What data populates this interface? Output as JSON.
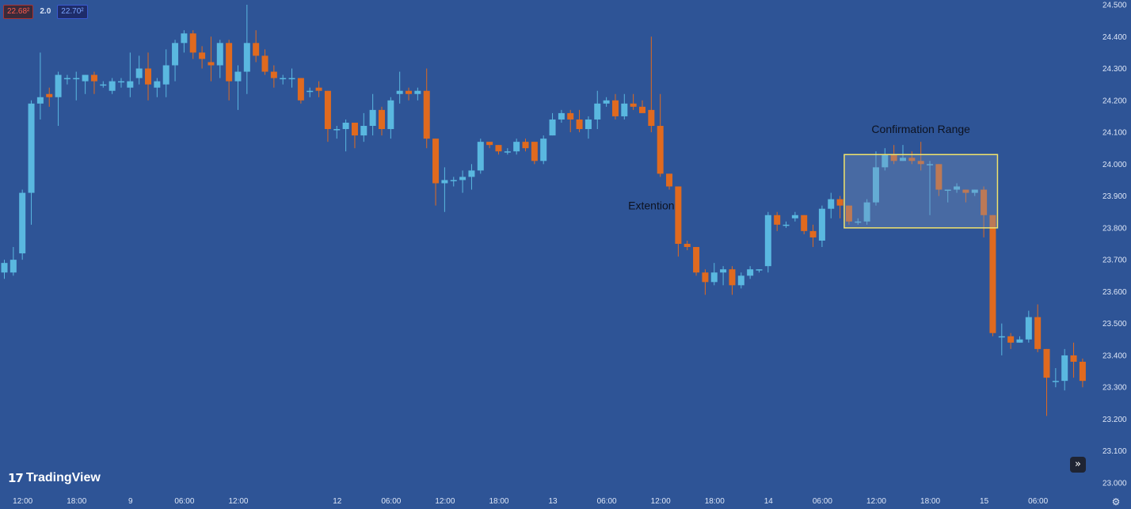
{
  "header": {
    "ask_price": "22.68²",
    "spread": "2.0",
    "bid_price": "22.70²"
  },
  "branding": {
    "logo_mark": "17",
    "logo_text": "TradingView"
  },
  "controls": {
    "scroll_icon": "double-chevron-right-icon",
    "settings_icon": "gear-icon"
  },
  "colors": {
    "background": "#2e5496",
    "bullish": "#5ab8e0",
    "bearish": "#e06a1f",
    "annotation_box": "#f2e36b",
    "annotation_text": "#0d1220",
    "axis_text": "#dde6f7"
  },
  "chart_data": {
    "type": "candlestick",
    "title": "",
    "xlabel": "",
    "ylabel": "",
    "ylim": [
      23.0,
      24.5
    ],
    "y_ticks": [
      "24.500",
      "24.400",
      "24.300",
      "24.200",
      "24.100",
      "24.000",
      "23.900",
      "23.800",
      "23.700",
      "23.600",
      "23.500",
      "23.400",
      "23.300",
      "23.200",
      "23.100",
      "23.000"
    ],
    "x_ticks": [
      {
        "label": "12:00",
        "index": 2
      },
      {
        "label": "18:00",
        "index": 8
      },
      {
        "label": "9",
        "index": 14
      },
      {
        "label": "06:00",
        "index": 20
      },
      {
        "label": "12:00",
        "index": 26
      },
      {
        "label": "12",
        "index": 37
      },
      {
        "label": "06:00",
        "index": 43
      },
      {
        "label": "12:00",
        "index": 49
      },
      {
        "label": "18:00",
        "index": 55
      },
      {
        "label": "13",
        "index": 61
      },
      {
        "label": "06:00",
        "index": 67
      },
      {
        "label": "12:00",
        "index": 73
      },
      {
        "label": "18:00",
        "index": 79
      },
      {
        "label": "14",
        "index": 85
      },
      {
        "label": "06:00",
        "index": 91
      },
      {
        "label": "12:00",
        "index": 97
      },
      {
        "label": "18:00",
        "index": 103
      },
      {
        "label": "15",
        "index": 109
      },
      {
        "label": "06:00",
        "index": 115
      }
    ],
    "candles": [
      [
        23.66,
        23.69,
        23.64,
        23.7
      ],
      [
        23.66,
        23.7,
        23.65,
        23.74
      ],
      [
        23.72,
        23.91,
        23.7,
        23.92
      ],
      [
        23.91,
        24.19,
        23.81,
        24.2
      ],
      [
        24.19,
        24.21,
        24.14,
        24.35
      ],
      [
        24.22,
        24.21,
        24.18,
        24.24
      ],
      [
        24.21,
        24.28,
        24.12,
        24.29
      ],
      [
        24.27,
        24.27,
        24.25,
        24.28
      ],
      [
        24.27,
        24.27,
        24.2,
        24.29
      ],
      [
        24.26,
        24.28,
        24.22,
        24.28
      ],
      [
        24.28,
        24.26,
        24.22,
        24.29
      ],
      [
        24.25,
        24.25,
        24.24,
        24.26
      ],
      [
        24.23,
        24.26,
        24.22,
        24.27
      ],
      [
        24.26,
        24.26,
        24.24,
        24.27
      ],
      [
        24.24,
        24.26,
        24.21,
        24.35
      ],
      [
        24.27,
        24.3,
        24.25,
        24.34
      ],
      [
        24.3,
        24.25,
        24.2,
        24.35
      ],
      [
        24.24,
        24.26,
        24.21,
        24.27
      ],
      [
        24.25,
        24.31,
        24.21,
        24.36
      ],
      [
        24.31,
        24.38,
        24.26,
        24.39
      ],
      [
        24.38,
        24.41,
        24.35,
        24.42
      ],
      [
        24.41,
        24.35,
        24.33,
        24.42
      ],
      [
        24.35,
        24.33,
        24.3,
        24.37
      ],
      [
        24.32,
        24.31,
        24.26,
        24.4
      ],
      [
        24.31,
        24.38,
        24.27,
        24.39
      ],
      [
        24.38,
        24.26,
        24.2,
        24.39
      ],
      [
        24.26,
        24.29,
        24.17,
        24.31
      ],
      [
        24.29,
        24.38,
        24.22,
        24.5
      ],
      [
        24.38,
        24.34,
        24.32,
        24.42
      ],
      [
        24.34,
        24.29,
        24.28,
        24.36
      ],
      [
        24.29,
        24.27,
        24.24,
        24.31
      ],
      [
        24.27,
        24.27,
        24.25,
        24.28
      ],
      [
        24.27,
        24.27,
        24.24,
        24.3
      ],
      [
        24.27,
        24.2,
        24.19,
        24.27
      ],
      [
        24.23,
        24.23,
        24.21,
        24.24
      ],
      [
        24.24,
        24.23,
        24.21,
        24.26
      ],
      [
        24.23,
        24.11,
        24.07,
        24.23
      ],
      [
        24.11,
        24.11,
        24.08,
        24.12
      ],
      [
        24.11,
        24.13,
        24.04,
        24.14
      ],
      [
        24.13,
        24.09,
        24.05,
        24.13
      ],
      [
        24.09,
        24.12,
        24.07,
        24.16
      ],
      [
        24.12,
        24.17,
        24.09,
        24.22
      ],
      [
        24.17,
        24.11,
        24.09,
        24.18
      ],
      [
        24.11,
        24.2,
        24.08,
        24.21
      ],
      [
        24.22,
        24.23,
        24.19,
        24.29
      ],
      [
        24.23,
        24.22,
        24.2,
        24.24
      ],
      [
        24.22,
        24.23,
        24.2,
        24.24
      ],
      [
        24.23,
        24.08,
        24.05,
        24.3
      ],
      [
        24.08,
        23.94,
        23.87,
        24.08
      ],
      [
        23.94,
        23.95,
        23.85,
        23.99
      ],
      [
        23.95,
        23.95,
        23.93,
        23.96
      ],
      [
        23.95,
        23.96,
        23.91,
        23.98
      ],
      [
        23.96,
        23.98,
        23.92,
        24.0
      ],
      [
        23.98,
        24.07,
        23.97,
        24.08
      ],
      [
        24.07,
        24.06,
        24.05,
        24.07
      ],
      [
        24.06,
        24.04,
        24.03,
        24.06
      ],
      [
        24.04,
        24.04,
        24.03,
        24.05
      ],
      [
        24.04,
        24.07,
        24.03,
        24.08
      ],
      [
        24.07,
        24.05,
        24.04,
        24.08
      ],
      [
        24.07,
        24.01,
        24.0,
        24.07
      ],
      [
        24.01,
        24.08,
        24.0,
        24.09
      ],
      [
        24.09,
        24.14,
        24.09,
        24.16
      ],
      [
        24.14,
        24.16,
        24.13,
        24.17
      ],
      [
        24.16,
        24.14,
        24.1,
        24.17
      ],
      [
        24.14,
        24.11,
        24.1,
        24.17
      ],
      [
        24.11,
        24.14,
        24.08,
        24.15
      ],
      [
        24.14,
        24.19,
        24.11,
        24.23
      ],
      [
        24.19,
        24.2,
        24.18,
        24.21
      ],
      [
        24.2,
        24.15,
        24.14,
        24.22
      ],
      [
        24.15,
        24.19,
        24.14,
        24.22
      ],
      [
        24.19,
        24.18,
        24.17,
        24.22
      ],
      [
        24.18,
        24.16,
        24.16,
        24.2
      ],
      [
        24.17,
        24.12,
        24.1,
        24.4
      ],
      [
        24.12,
        23.97,
        23.96,
        24.22
      ],
      [
        23.97,
        23.93,
        23.92,
        23.97
      ],
      [
        23.93,
        23.75,
        23.71,
        23.93
      ],
      [
        23.75,
        23.74,
        23.73,
        23.76
      ],
      [
        23.74,
        23.66,
        23.65,
        23.74
      ],
      [
        23.66,
        23.63,
        23.59,
        23.67
      ],
      [
        23.63,
        23.66,
        23.62,
        23.69
      ],
      [
        23.66,
        23.67,
        23.62,
        23.68
      ],
      [
        23.67,
        23.62,
        23.59,
        23.68
      ],
      [
        23.62,
        23.65,
        23.61,
        23.66
      ],
      [
        23.65,
        23.67,
        23.64,
        23.68
      ],
      [
        23.67,
        23.67,
        23.66,
        23.67
      ],
      [
        23.68,
        23.84,
        23.66,
        23.85
      ],
      [
        23.84,
        23.81,
        23.79,
        23.85
      ],
      [
        23.81,
        23.81,
        23.8,
        23.82
      ],
      [
        23.83,
        23.84,
        23.82,
        23.85
      ],
      [
        23.84,
        23.79,
        23.78,
        23.84
      ],
      [
        23.79,
        23.77,
        23.74,
        23.81
      ],
      [
        23.76,
        23.86,
        23.74,
        23.87
      ],
      [
        23.86,
        23.89,
        23.83,
        23.91
      ],
      [
        23.89,
        23.87,
        23.83,
        23.9
      ],
      [
        23.87,
        23.82,
        23.81,
        23.87
      ],
      [
        23.82,
        23.82,
        23.81,
        23.83
      ],
      [
        23.82,
        23.88,
        23.81,
        23.89
      ],
      [
        23.88,
        23.99,
        23.87,
        24.04
      ],
      [
        23.99,
        24.03,
        23.98,
        24.05
      ],
      [
        24.03,
        24.01,
        24.0,
        24.06
      ],
      [
        24.01,
        24.02,
        24.01,
        24.06
      ],
      [
        24.02,
        24.01,
        24.0,
        24.04
      ],
      [
        24.01,
        24.0,
        23.98,
        24.07
      ],
      [
        24.0,
        24.0,
        23.84,
        24.01
      ],
      [
        24.0,
        23.92,
        23.9,
        24.0
      ],
      [
        23.92,
        23.92,
        23.88,
        23.92
      ],
      [
        23.92,
        23.93,
        23.91,
        23.94
      ],
      [
        23.92,
        23.91,
        23.88,
        23.92
      ],
      [
        23.91,
        23.92,
        23.9,
        23.92
      ],
      [
        23.92,
        23.84,
        23.77,
        23.93
      ],
      [
        23.84,
        23.47,
        23.46,
        23.84
      ],
      [
        23.46,
        23.46,
        23.4,
        23.5
      ],
      [
        23.46,
        23.44,
        23.42,
        23.47
      ],
      [
        23.44,
        23.45,
        23.44,
        23.46
      ],
      [
        23.45,
        23.52,
        23.44,
        23.54
      ],
      [
        23.52,
        23.42,
        23.41,
        23.56
      ],
      [
        23.42,
        23.33,
        23.21,
        23.42
      ],
      [
        23.32,
        23.32,
        23.3,
        23.36
      ],
      [
        23.32,
        23.4,
        23.29,
        23.42
      ],
      [
        23.4,
        23.38,
        23.33,
        23.44
      ],
      [
        23.38,
        23.32,
        23.3,
        23.39
      ]
    ],
    "annotations": [
      {
        "type": "text",
        "text": "Extention",
        "x_index": 72,
        "price": 23.87
      },
      {
        "type": "text",
        "text": "Confirmation Range",
        "x_index": 102,
        "price": 24.11
      },
      {
        "type": "rect",
        "x_start": 94,
        "x_end": 110,
        "price_top": 24.03,
        "price_bottom": 23.8
      }
    ]
  }
}
